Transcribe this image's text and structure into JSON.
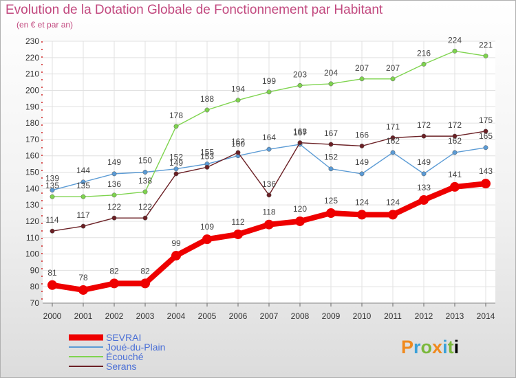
{
  "chart_data": {
    "type": "line",
    "title": "Evolution de la Dotation Globale de Fonctionnement par Habitant",
    "subtitle": "(en € et par an)",
    "x": [
      "2000",
      "2001",
      "2002",
      "2003",
      "2004",
      "2005",
      "2006",
      "2007",
      "2008",
      "2009",
      "2010",
      "2011",
      "2012",
      "2013",
      "2014"
    ],
    "ylim": [
      70,
      230
    ],
    "yticks": [
      70,
      80,
      90,
      100,
      110,
      120,
      130,
      140,
      150,
      160,
      170,
      180,
      190,
      200,
      210,
      220,
      230
    ],
    "series": [
      {
        "name": "SEVRAI",
        "color": "#ee0000",
        "values": [
          81,
          78,
          82,
          82,
          99,
          109,
          112,
          118,
          120,
          125,
          124,
          124,
          133,
          141,
          143
        ]
      },
      {
        "name": "Joué-du-Plain",
        "color": "#5b9bd5",
        "values": [
          139,
          144,
          149,
          150,
          152,
          155,
          160,
          164,
          167,
          152,
          149,
          162,
          149,
          162,
          165
        ]
      },
      {
        "name": "Écouché",
        "color": "#7fd44f",
        "values": [
          135,
          135,
          136,
          138,
          178,
          188,
          194,
          199,
          203,
          204,
          207,
          207,
          216,
          224,
          221
        ]
      },
      {
        "name": "Serans",
        "color": "#6b2025",
        "values": [
          114,
          117,
          122,
          122,
          149,
          153,
          162,
          136,
          168,
          167,
          166,
          171,
          172,
          172,
          175
        ]
      }
    ]
  },
  "logo": {
    "letters": [
      "P",
      "r",
      "o",
      "x",
      "i",
      "t",
      "i"
    ]
  }
}
